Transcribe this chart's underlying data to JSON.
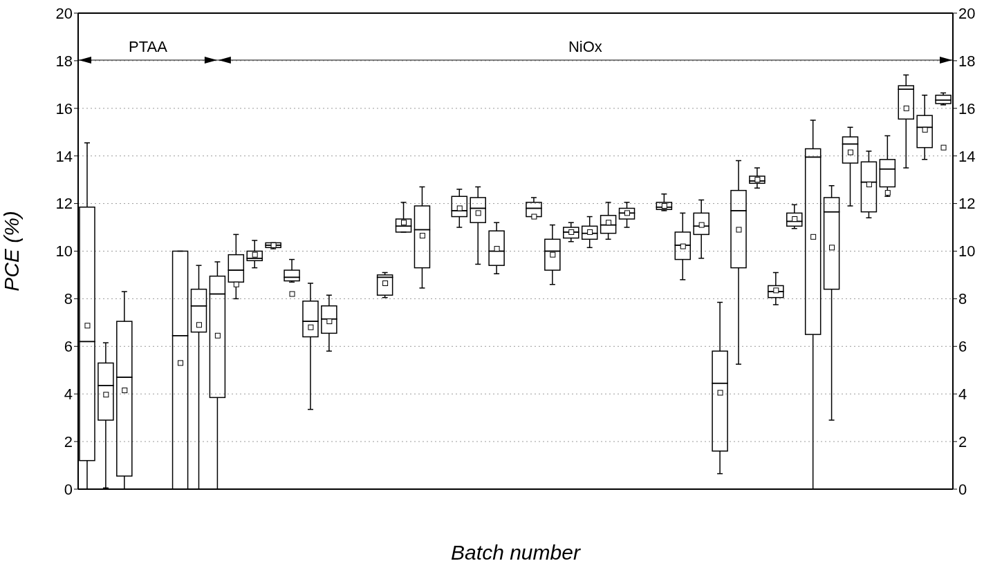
{
  "chart_data": {
    "type": "box",
    "xlabel": "Batch number",
    "ylabel": "PCE (%)",
    "categories": [
      null,
      null,
      null,
      null,
      null,
      null,
      null,
      null,
      null,
      null,
      null,
      null,
      null,
      null,
      null,
      null,
      null,
      null,
      null,
      null,
      null,
      null,
      null,
      null,
      null,
      null,
      null,
      null,
      null,
      null,
      null,
      null,
      null,
      null,
      null,
      null,
      null,
      null,
      null,
      null,
      null,
      null,
      null,
      null,
      null,
      null,
      null
    ],
    "boxes": [
      {
        "low": 0,
        "q1": 1.2,
        "median": 6.2,
        "q3": 11.85,
        "high": 14.55,
        "mean": 6.87
      },
      {
        "low": 0.05,
        "q1": 2.9,
        "median": 4.35,
        "q3": 5.3,
        "high": 6.15,
        "mean": 3.97
      },
      {
        "low": 0,
        "q1": 0.55,
        "median": 4.7,
        "q3": 7.05,
        "high": 8.3,
        "mean": 4.15
      },
      null,
      null,
      {
        "low": 0,
        "q1": 0,
        "median": 6.45,
        "q3": 10,
        "high": 10,
        "mean": 5.3
      },
      {
        "low": 0,
        "q1": 6.6,
        "median": 7.7,
        "q3": 8.4,
        "high": 9.4,
        "mean": 6.9
      },
      {
        "low": 0,
        "q1": 3.85,
        "median": 8.2,
        "q3": 8.95,
        "high": 9.55,
        "mean": 6.45
      },
      {
        "low": 8,
        "q1": 8.7,
        "median": 9.2,
        "q3": 9.85,
        "high": 10.7,
        "mean": 8.6
      },
      {
        "low": 9.3,
        "q1": 9.6,
        "median": 9.7,
        "q3": 10,
        "high": 10.45,
        "mean": 9.85
      },
      {
        "low": 10.1,
        "q1": 10.15,
        "median": 10.25,
        "q3": 10.35,
        "high": 10.35,
        "mean": 10.25
      },
      {
        "low": 8.7,
        "q1": 8.75,
        "median": 8.9,
        "q3": 9.2,
        "high": 9.65,
        "mean": 8.2
      },
      {
        "low": 3.35,
        "q1": 6.4,
        "median": 7.05,
        "q3": 7.9,
        "high": 8.65,
        "mean": 6.8
      },
      {
        "low": 5.8,
        "q1": 6.55,
        "median": 7.15,
        "q3": 7.7,
        "high": 8.15,
        "mean": 7.05
      },
      null,
      null,
      {
        "low": 8.05,
        "q1": 8.15,
        "median": 8.9,
        "q3": 9,
        "high": 9.1,
        "mean": 8.65
      },
      {
        "low": 10.8,
        "q1": 10.8,
        "median": 11.05,
        "q3": 11.35,
        "high": 12.05,
        "mean": 11.2
      },
      {
        "low": 8.45,
        "q1": 9.3,
        "median": 10.9,
        "q3": 11.9,
        "high": 12.7,
        "mean": 10.65
      },
      null,
      {
        "low": 11,
        "q1": 11.45,
        "median": 11.7,
        "q3": 12.3,
        "high": 12.6,
        "mean": 11.8
      },
      {
        "low": 9.45,
        "q1": 11.2,
        "median": 11.8,
        "q3": 12.25,
        "high": 12.7,
        "mean": 11.6
      },
      {
        "low": 9.05,
        "q1": 9.4,
        "median": 10,
        "q3": 10.85,
        "high": 11.2,
        "mean": 10.1
      },
      null,
      {
        "low": 11.45,
        "q1": 11.45,
        "median": 11.8,
        "q3": 12.05,
        "high": 12.25,
        "mean": 11.45
      },
      {
        "low": 8.6,
        "q1": 9.2,
        "median": 10,
        "q3": 10.5,
        "high": 11.1,
        "mean": 9.85
      },
      {
        "low": 10.4,
        "q1": 10.55,
        "median": 10.8,
        "q3": 11,
        "high": 11.2,
        "mean": 10.8
      },
      {
        "low": 10.15,
        "q1": 10.5,
        "median": 10.75,
        "q3": 11.05,
        "high": 11.45,
        "mean": 10.8
      },
      {
        "low": 10.5,
        "q1": 10.75,
        "median": 11.1,
        "q3": 11.5,
        "high": 12.05,
        "mean": 11.2
      },
      {
        "low": 11,
        "q1": 11.35,
        "median": 11.6,
        "q3": 11.8,
        "high": 12.05,
        "mean": 11.6
      },
      null,
      {
        "low": 11.7,
        "q1": 11.75,
        "median": 11.85,
        "q3": 12.05,
        "high": 12.4,
        "mean": 11.9
      },
      {
        "low": 8.8,
        "q1": 9.65,
        "median": 10.25,
        "q3": 10.8,
        "high": 11.6,
        "mean": 10.2
      },
      {
        "low": 9.7,
        "q1": 10.7,
        "median": 11.05,
        "q3": 11.6,
        "high": 12.15,
        "mean": 11.1
      },
      {
        "low": 0.65,
        "q1": 1.6,
        "median": 4.45,
        "q3": 5.8,
        "high": 7.85,
        "mean": 4.05
      },
      {
        "low": 5.25,
        "q1": 9.3,
        "median": 11.7,
        "q3": 12.55,
        "high": 13.8,
        "mean": 10.9
      },
      {
        "low": 12.65,
        "q1": 12.85,
        "median": 12.95,
        "q3": 13.15,
        "high": 13.5,
        "mean": 13
      },
      {
        "low": 7.75,
        "q1": 8.05,
        "median": 8.3,
        "q3": 8.55,
        "high": 9.1,
        "mean": 8.35
      },
      {
        "low": 10.95,
        "q1": 11.05,
        "median": 11.25,
        "q3": 11.6,
        "high": 11.95,
        "mean": 11.35
      },
      {
        "low": 0,
        "q1": 6.5,
        "median": 13.95,
        "q3": 14.3,
        "high": 15.5,
        "mean": 10.6
      },
      {
        "low": 2.9,
        "q1": 8.4,
        "median": 11.65,
        "q3": 12.25,
        "high": 12.75,
        "mean": 10.15
      },
      {
        "low": 11.9,
        "q1": 13.7,
        "median": 14.5,
        "q3": 14.8,
        "high": 15.2,
        "mean": 14.15
      },
      {
        "low": 11.4,
        "q1": 11.65,
        "median": 12.9,
        "q3": 13.75,
        "high": 14.2,
        "mean": 12.8
      },
      {
        "low": 12.3,
        "q1": 12.7,
        "median": 13.45,
        "q3": 13.85,
        "high": 14.85,
        "mean": 12.45
      },
      {
        "low": 13.5,
        "q1": 15.55,
        "median": 16.8,
        "q3": 16.95,
        "high": 17.4,
        "mean": 16
      },
      {
        "low": 13.85,
        "q1": 14.35,
        "median": 15.2,
        "q3": 15.7,
        "high": 16.55,
        "mean": 15.1
      },
      {
        "low": 16.15,
        "q1": 16.2,
        "median": 16.35,
        "q3": 16.55,
        "high": 16.65,
        "mean": 14.35
      }
    ],
    "ylim": [
      0,
      20
    ],
    "yticks": [
      0,
      2,
      4,
      6,
      8,
      10,
      12,
      14,
      16,
      18,
      20
    ],
    "y2lim": [
      0,
      20
    ],
    "y2ticks": [
      0,
      2,
      4,
      6,
      8,
      10,
      12,
      14,
      16,
      18,
      20
    ],
    "grid": "y",
    "annotations": [
      "PTAA",
      "NiOx"
    ]
  }
}
